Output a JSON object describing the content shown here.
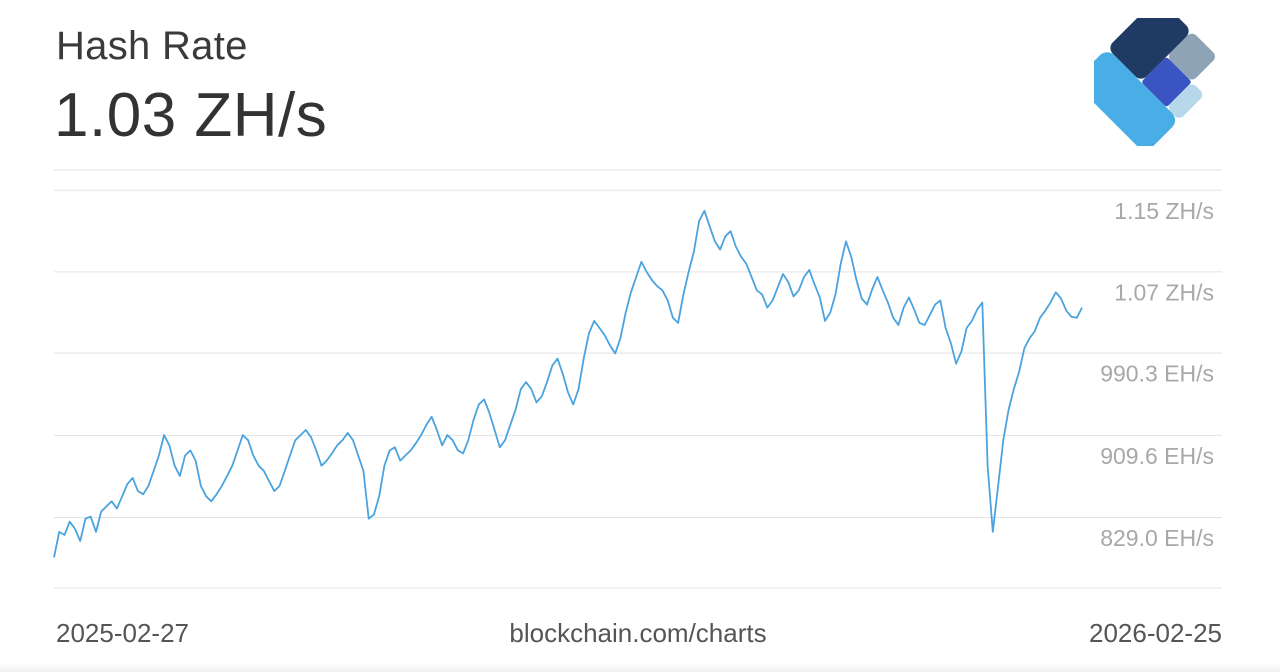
{
  "header": {
    "title": "Hash Rate",
    "current_value": "1.03 ZH/s"
  },
  "footer": {
    "start_date": "2025-02-27",
    "source": "blockchain.com/charts",
    "end_date": "2026-02-25"
  },
  "colors": {
    "line": "#4aa3df",
    "grid": "#e3e3e3",
    "tick_text": "#a8a8a8",
    "logo_dark": "#1f3b63",
    "logo_mid": "#3a55c2",
    "logo_grey": "#8ea4b6",
    "logo_light": "#b7d8ea",
    "logo_main": "#4aaee6"
  },
  "chart_data": {
    "type": "line",
    "title": "Hash Rate",
    "xlabel": "",
    "ylabel": "",
    "x_start": "2025-02-27",
    "x_end": "2026-02-25",
    "y_unit": "EH/s",
    "ylim": [
      780,
      1190
    ],
    "y_ticks": [
      829.0,
      909.6,
      990.3,
      1070,
      1150
    ],
    "y_tick_labels": [
      "829.0 EH/s",
      "909.6 EH/s",
      "990.3 EH/s",
      "1.07 ZH/s",
      "1.15 ZH/s"
    ],
    "grid": true,
    "series": [
      {
        "values": [
          810,
          835,
          832,
          845,
          838,
          826,
          848,
          850,
          835,
          855,
          860,
          865,
          858,
          870,
          882,
          888,
          875,
          872,
          880,
          895,
          910,
          930,
          920,
          900,
          890,
          910,
          915,
          905,
          880,
          870,
          865,
          872,
          880,
          890,
          900,
          915,
          930,
          925,
          910,
          900,
          895,
          885,
          875,
          880,
          895,
          910,
          925,
          930,
          935,
          928,
          915,
          900,
          905,
          912,
          920,
          925,
          932,
          925,
          910,
          895,
          848,
          852,
          870,
          900,
          915,
          918,
          905,
          910,
          915,
          922,
          930,
          940,
          948,
          935,
          920,
          930,
          925,
          915,
          912,
          925,
          945,
          960,
          965,
          952,
          935,
          918,
          925,
          940,
          955,
          975,
          982,
          975,
          962,
          968,
          982,
          998,
          1005,
          990,
          972,
          960,
          975,
          1005,
          1030,
          1042,
          1035,
          1028,
          1018,
          1010,
          1025,
          1050,
          1070,
          1085,
          1100,
          1090,
          1082,
          1076,
          1072,
          1062,
          1045,
          1040,
          1068,
          1090,
          1110,
          1140,
          1150,
          1135,
          1120,
          1112,
          1125,
          1130,
          1115,
          1105,
          1098,
          1085,
          1072,
          1068,
          1055,
          1062,
          1075,
          1088,
          1080,
          1066,
          1072,
          1085,
          1092,
          1078,
          1065,
          1042,
          1050,
          1068,
          1098,
          1120,
          1105,
          1082,
          1064,
          1058,
          1073,
          1085,
          1072,
          1060,
          1045,
          1038,
          1055,
          1065,
          1053,
          1040,
          1038,
          1048,
          1058,
          1062,
          1035,
          1020,
          1000,
          1012,
          1035,
          1042,
          1053,
          1060,
          900,
          835,
          880,
          925,
          955,
          975,
          992,
          1015,
          1025,
          1032,
          1045,
          1052,
          1060,
          1070,
          1064,
          1052,
          1046,
          1045,
          1055
        ]
      }
    ]
  }
}
